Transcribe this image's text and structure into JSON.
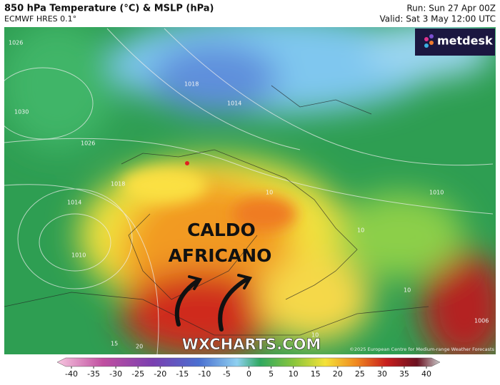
{
  "header": {
    "title": "850 hPa Temperature (°C) & MSLP (hPa)",
    "subtitle": "ECMWF HRES 0.1°",
    "run": "Run: Sun 27 Apr 00Z",
    "valid": "Valid: Sat 3 May 12:00 UTC"
  },
  "logo": "metdesk",
  "annotation": [
    "CALDO",
    "AFRICANO"
  ],
  "watermark": "WXCHARTS.COM",
  "copyright": "©2025 European Centre for Medium-range Weather Forecasts",
  "isobar_labels": [
    "1026",
    "1018",
    "1014",
    "1030",
    "1026",
    "1018",
    "1014",
    "1010",
    "1010",
    "10",
    "10",
    "10",
    "1006",
    "15",
    "20",
    "10"
  ],
  "colorbar": {
    "ticks": [
      -40,
      -35,
      -30,
      -25,
      -20,
      -15,
      -10,
      -5,
      0,
      5,
      10,
      15,
      20,
      25,
      30,
      35,
      40
    ]
  }
}
